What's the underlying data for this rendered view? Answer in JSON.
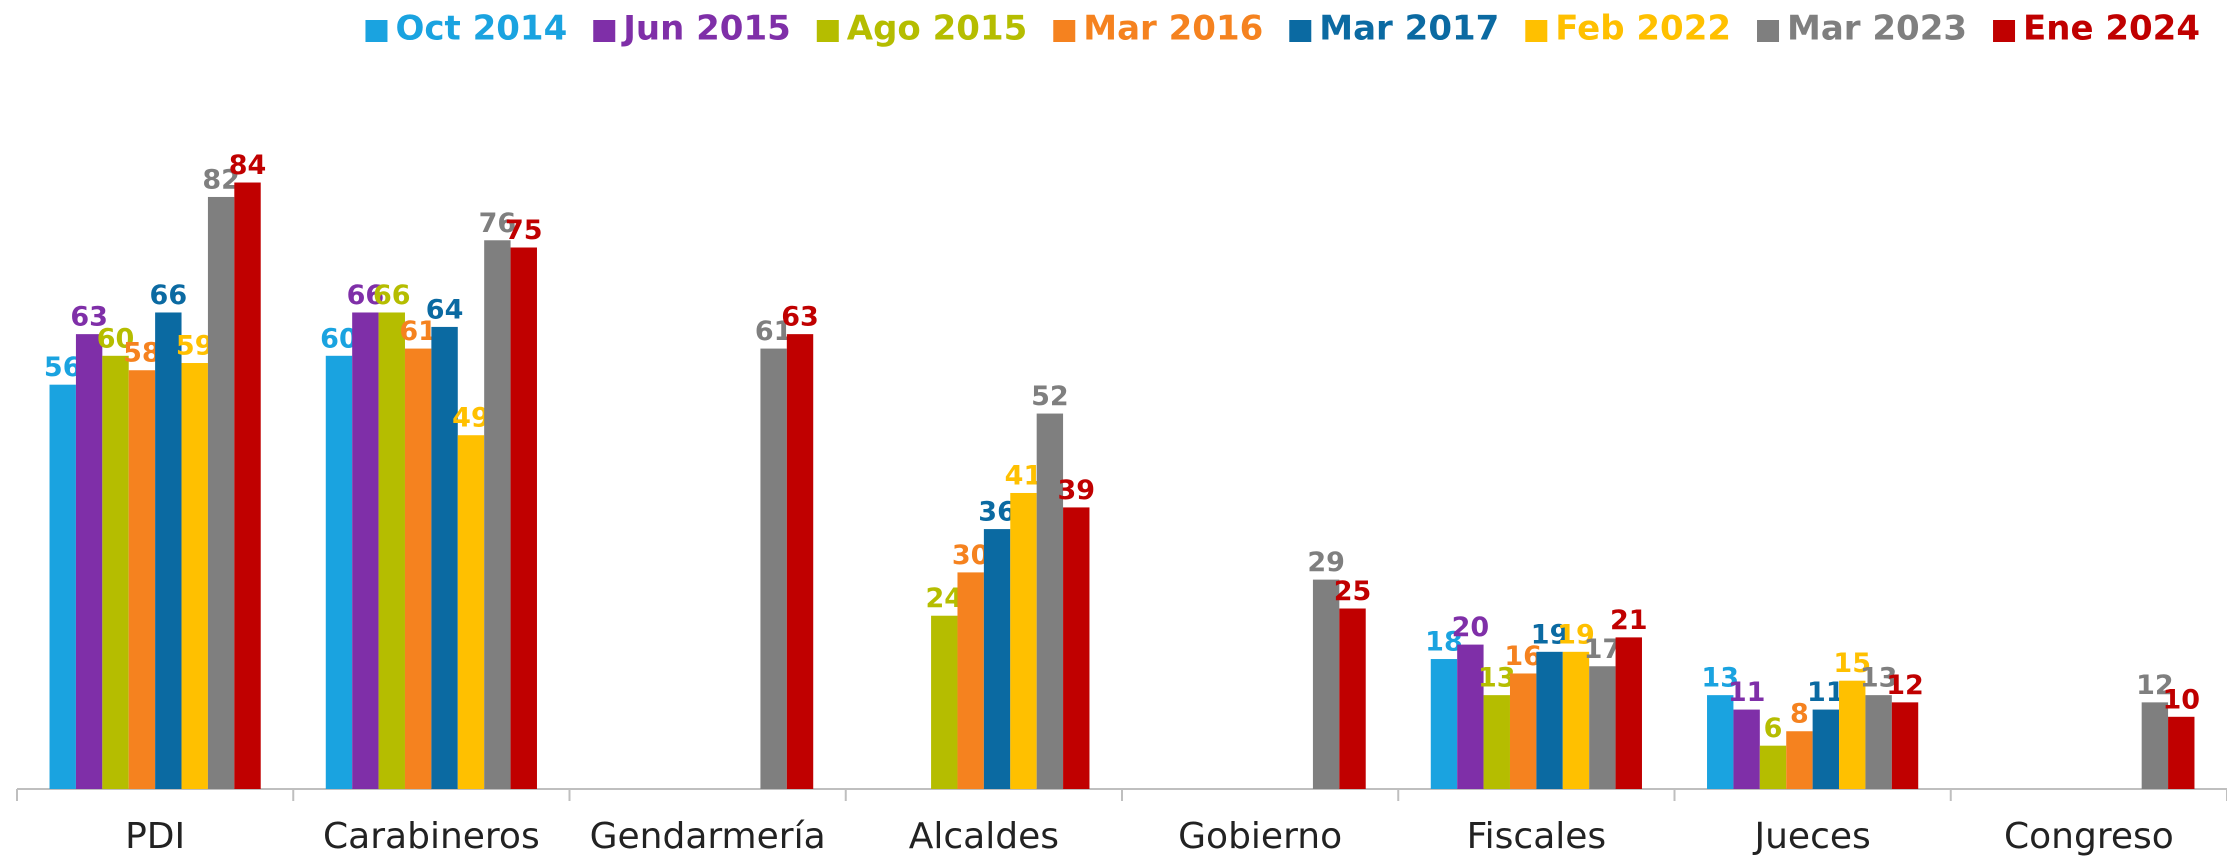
{
  "chart_data": {
    "type": "bar",
    "categories": [
      "PDI",
      "Carabineros",
      "Gendarmería",
      "Alcaldes",
      "Gobierno",
      "Fiscales",
      "Jueces",
      "Congreso"
    ],
    "series": [
      {
        "name": "Oct 2014",
        "color": "#1aa3e0",
        "values": [
          56,
          60,
          null,
          null,
          null,
          18,
          13,
          null
        ]
      },
      {
        "name": "Jun 2015",
        "color": "#7f2fa8",
        "values": [
          63,
          66,
          null,
          null,
          null,
          20,
          11,
          null
        ]
      },
      {
        "name": "Ago 2015",
        "color": "#b5bd00",
        "values": [
          60,
          66,
          null,
          24,
          null,
          13,
          6,
          null
        ]
      },
      {
        "name": "Mar 2016",
        "color": "#f5821f",
        "values": [
          58,
          61,
          null,
          30,
          null,
          16,
          8,
          null
        ]
      },
      {
        "name": "Mar 2017",
        "color": "#0b6aa2",
        "values": [
          66,
          64,
          null,
          36,
          null,
          19,
          11,
          null
        ]
      },
      {
        "name": "Feb 2022",
        "color": "#ffc000",
        "values": [
          59,
          49,
          null,
          41,
          null,
          19,
          15,
          null
        ]
      },
      {
        "name": "Mar 2023",
        "color": "#7f7f7f",
        "values": [
          82,
          76,
          61,
          52,
          29,
          17,
          13,
          12
        ]
      },
      {
        "name": "Ene 2024",
        "color": "#c00000",
        "values": [
          84,
          75,
          63,
          39,
          25,
          21,
          12,
          10
        ]
      }
    ],
    "ylim": [
      0,
      100
    ],
    "legend": "top-right"
  }
}
